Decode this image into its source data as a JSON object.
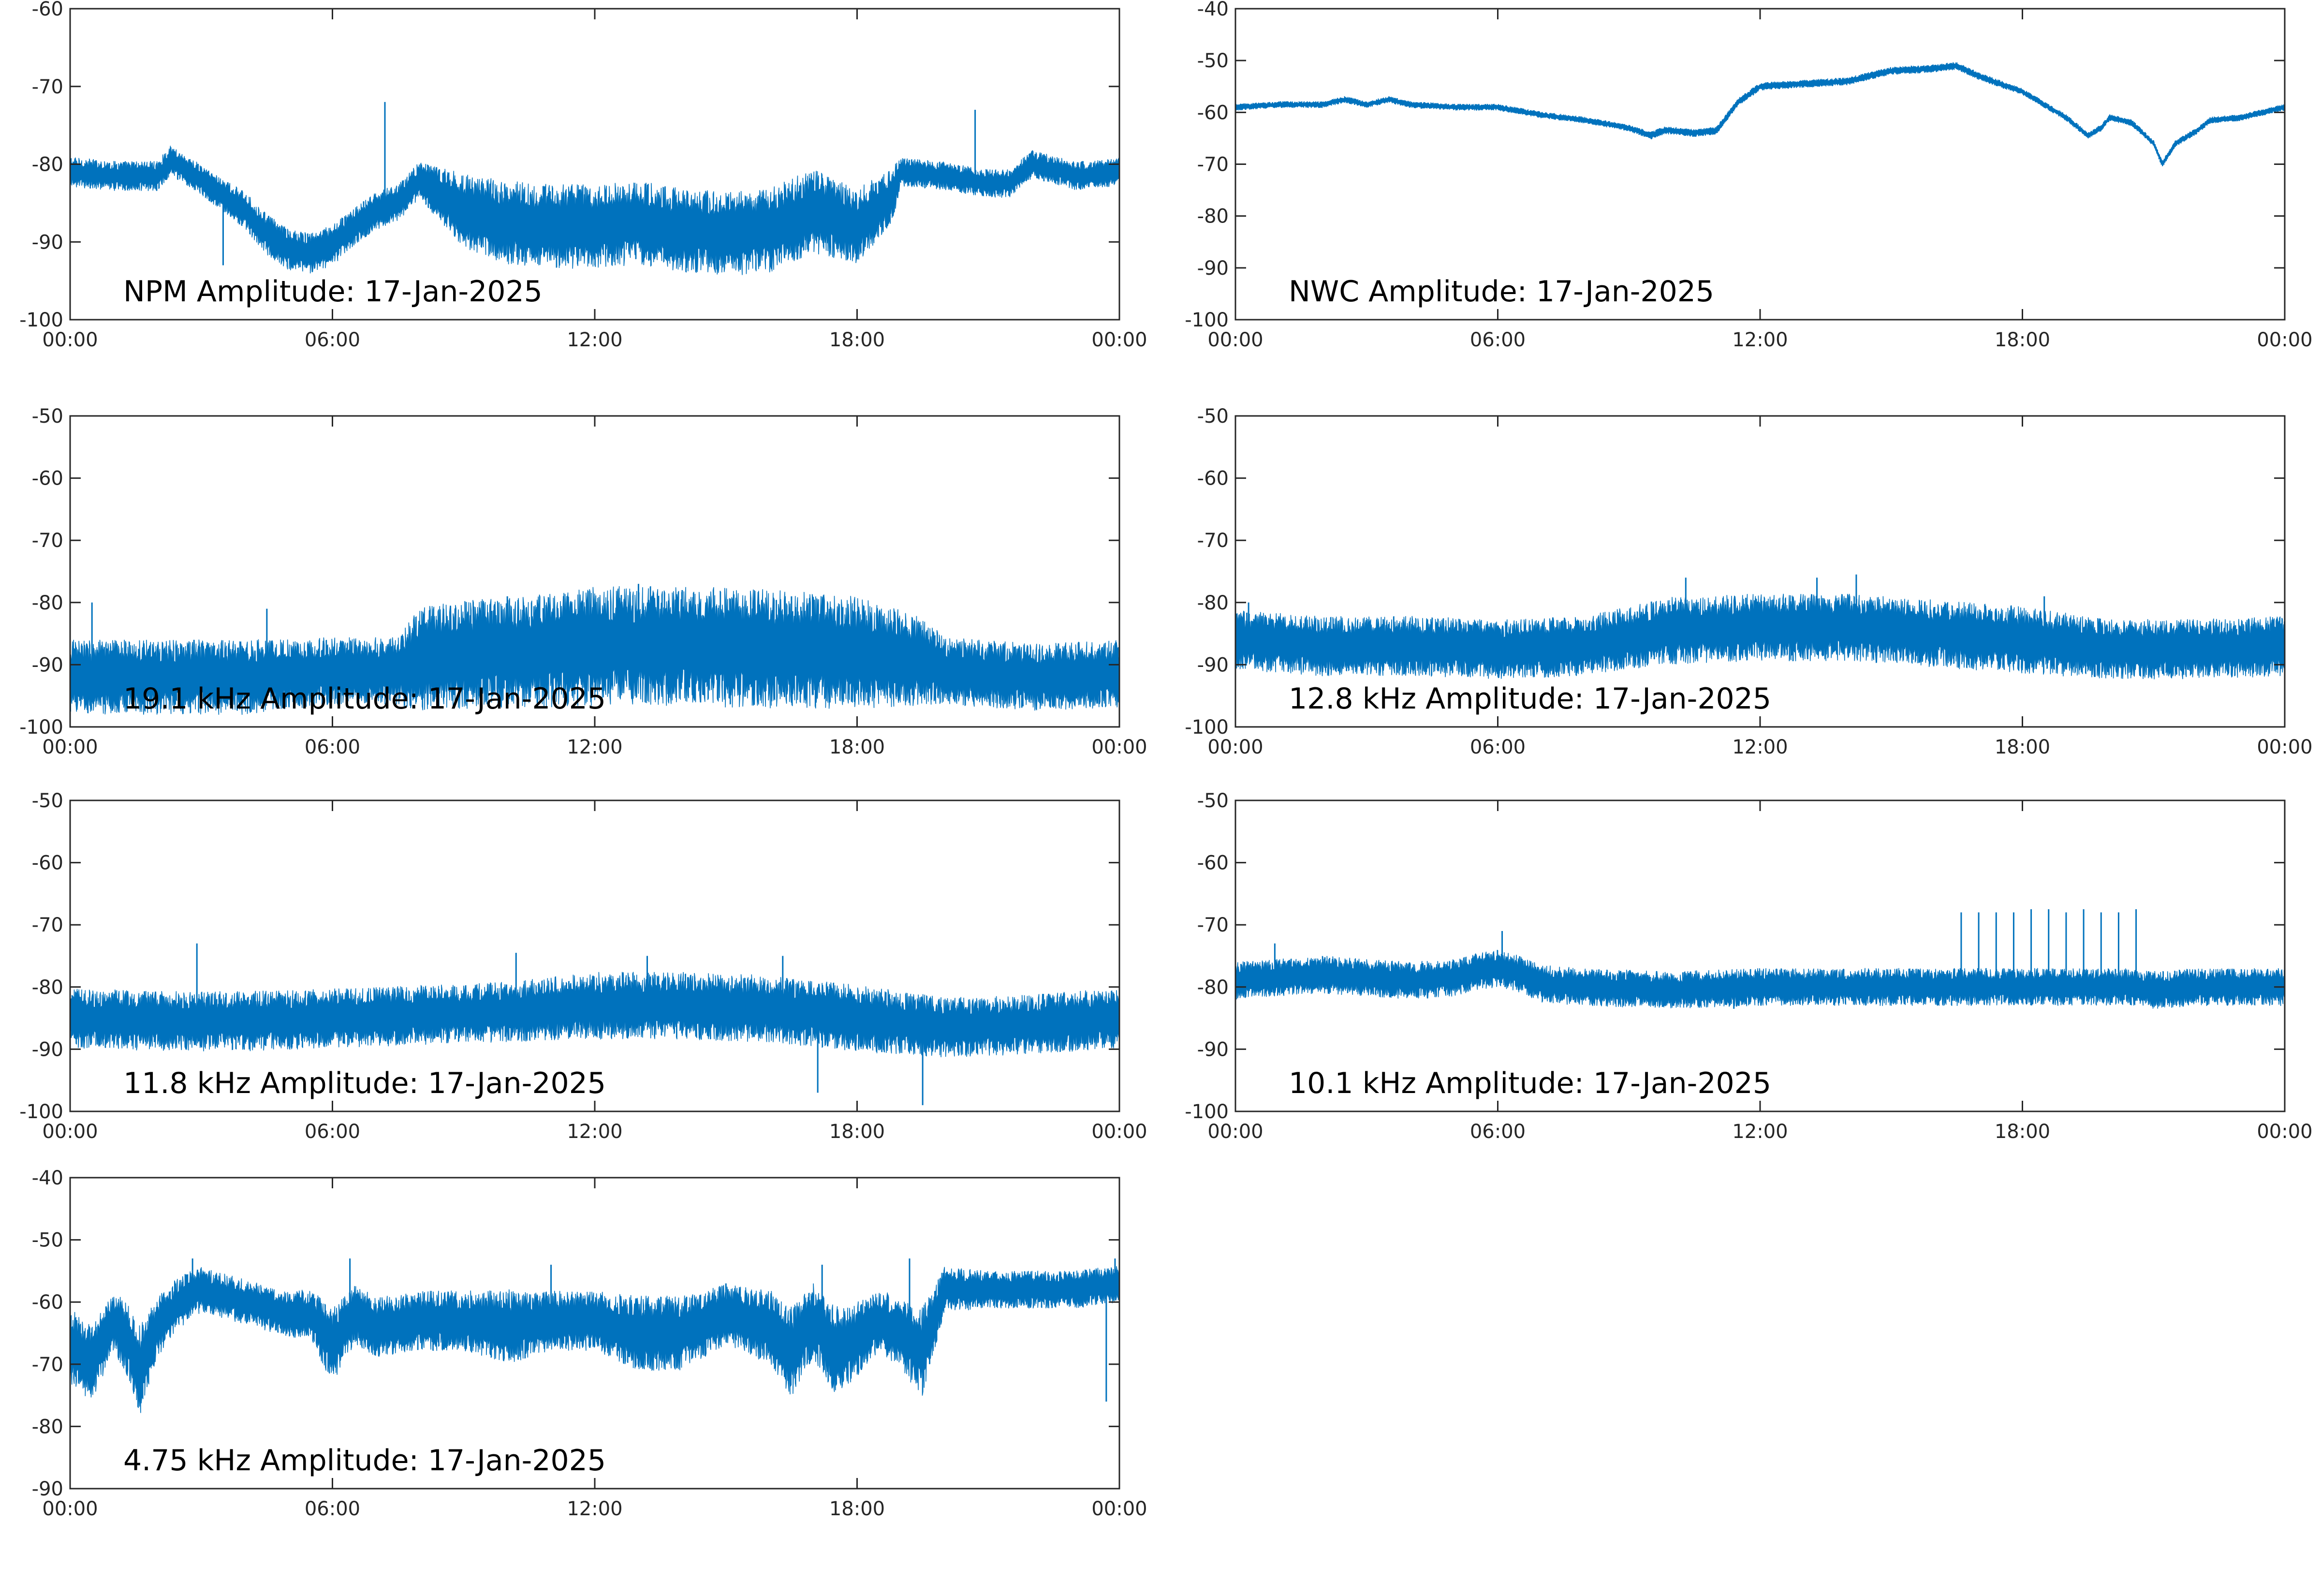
{
  "figure": {
    "background": "#ffffff",
    "line_color": "#0072bd",
    "axis_color": "#262626"
  },
  "chart_data": [
    {
      "type": "line",
      "title": "NPM Amplitude: 17-Jan-2025",
      "xticks": [
        "00:00",
        "06:00",
        "12:00",
        "18:00",
        "00:00"
      ],
      "xlim": [
        0,
        24
      ],
      "ylim": [
        -100,
        -60
      ],
      "yticks": [
        -60,
        -70,
        -80,
        -90,
        -100
      ],
      "grid": false,
      "series": [
        {
          "color": "#0072bd",
          "x": [
            0,
            1,
            2,
            2.3,
            3,
            3.5,
            4,
            4.5,
            5,
            5.5,
            6,
            6.5,
            7,
            7.5,
            8,
            8.5,
            9,
            10,
            11,
            12,
            13,
            14,
            15,
            16,
            17,
            18,
            18.8,
            19,
            20,
            21,
            21.5,
            22,
            23,
            24
          ],
          "y": [
            -81,
            -81.5,
            -81.5,
            -79.5,
            -82,
            -84,
            -86,
            -89,
            -91,
            -91.5,
            -90.5,
            -88,
            -86,
            -85,
            -82,
            -84,
            -86,
            -87.5,
            -88,
            -88,
            -87.5,
            -88.5,
            -89,
            -88.5,
            -86,
            -88,
            -84,
            -81,
            -81.5,
            -82.5,
            -82.5,
            -80,
            -81.5,
            -81
          ],
          "spread": [
            1.6,
            1.6,
            1.6,
            1.6,
            1.6,
            1.8,
            2,
            2.2,
            2.2,
            2.2,
            2.2,
            2,
            2,
            2,
            2,
            3,
            4,
            4.5,
            4.5,
            4.5,
            4.5,
            4.5,
            4.5,
            4.5,
            4.5,
            4,
            3,
            1.5,
            1.5,
            1.5,
            1.5,
            1.5,
            1.5,
            1.5
          ],
          "spikes": [
            [
              3.5,
              -93
            ],
            [
              7.2,
              -72
            ],
            [
              20.7,
              -73
            ],
            [
              22,
              -79
            ]
          ]
        }
      ]
    },
    {
      "type": "line",
      "title": "NWC Amplitude: 17-Jan-2025",
      "xticks": [
        "00:00",
        "06:00",
        "12:00",
        "18:00",
        "00:00"
      ],
      "xlim": [
        0,
        24
      ],
      "ylim": [
        -100,
        -40
      ],
      "yticks": [
        -40,
        -50,
        -60,
        -70,
        -80,
        -90,
        -100
      ],
      "grid": false,
      "series": [
        {
          "color": "#0072bd",
          "x": [
            0,
            1,
            2,
            2.5,
            3,
            3.5,
            4,
            5,
            6,
            7,
            8,
            9,
            9.5,
            9.8,
            10,
            10.5,
            11,
            11.5,
            12,
            13,
            14,
            15,
            16,
            16.5,
            17,
            18,
            19,
            19.5,
            19.8,
            20,
            20.5,
            21,
            21.2,
            21.5,
            22,
            22.3,
            23,
            24
          ],
          "y": [
            -59,
            -58.5,
            -58.5,
            -57.5,
            -58.5,
            -57.5,
            -58.5,
            -59,
            -59,
            -60.5,
            -61.5,
            -63,
            -64.5,
            -63.5,
            -63.5,
            -64,
            -63.5,
            -58,
            -55,
            -54.5,
            -54,
            -52,
            -51.5,
            -51,
            -53,
            -56,
            -61,
            -64.5,
            -63,
            -61,
            -62,
            -66,
            -70,
            -66,
            -63.5,
            -61.5,
            -61,
            -59
          ],
          "spread": [
            0.5,
            0.5,
            0.5,
            0.5,
            0.5,
            0.5,
            0.5,
            0.5,
            0.5,
            0.5,
            0.5,
            0.5,
            0.6,
            0.6,
            0.6,
            0.6,
            0.6,
            0.6,
            0.6,
            0.6,
            0.6,
            0.6,
            0.6,
            0.6,
            0.6,
            0.5,
            0.5,
            0.5,
            0.5,
            0.5,
            0.5,
            0.5,
            0.5,
            0.5,
            0.5,
            0.5,
            0.5,
            0.5
          ],
          "spikes": []
        }
      ]
    },
    {
      "type": "line",
      "title": "19.1 kHz Amplitude: 17-Jan-2025",
      "xticks": [
        "00:00",
        "06:00",
        "12:00",
        "18:00",
        "00:00"
      ],
      "xlim": [
        0,
        24
      ],
      "ylim": [
        -100,
        -50
      ],
      "yticks": [
        -50,
        -60,
        -70,
        -80,
        -90,
        -100
      ],
      "grid": false,
      "series": [
        {
          "color": "#0072bd",
          "x": [
            0,
            2,
            4,
            6,
            7.5,
            8,
            10,
            12,
            14,
            16,
            18,
            19.5,
            20,
            22,
            24
          ],
          "y": [
            -92,
            -92,
            -92,
            -91,
            -91,
            -89,
            -88,
            -87,
            -87,
            -87.5,
            -88,
            -89.5,
            -91,
            -92,
            -91.5
          ],
          "spread": [
            5,
            5,
            5,
            4.5,
            4.5,
            7,
            7.5,
            8,
            8,
            8,
            7.5,
            6,
            4.5,
            4.5,
            4.5
          ],
          "spikes": [
            [
              0.5,
              -80
            ],
            [
              4.5,
              -81
            ],
            [
              10,
              -79
            ],
            [
              13,
              -77
            ],
            [
              14,
              -78
            ],
            [
              16.5,
              -79
            ],
            [
              24,
              -83
            ]
          ]
        }
      ]
    },
    {
      "type": "line",
      "title": "12.8 kHz Amplitude: 17-Jan-2025",
      "xticks": [
        "00:00",
        "06:00",
        "12:00",
        "18:00",
        "00:00"
      ],
      "xlim": [
        0,
        24
      ],
      "ylim": [
        -100,
        -50
      ],
      "yticks": [
        -50,
        -60,
        -70,
        -80,
        -90,
        -100
      ],
      "grid": false,
      "series": [
        {
          "color": "#0072bd",
          "x": [
            0,
            2,
            4,
            6,
            8,
            10,
            12,
            13,
            14,
            16,
            18,
            20,
            22,
            24
          ],
          "y": [
            -86,
            -87,
            -87,
            -87.5,
            -87,
            -84.5,
            -84,
            -84,
            -84,
            -85,
            -86,
            -87.5,
            -87.5,
            -87
          ],
          "spread": [
            4,
            4,
            4,
            4,
            4,
            4.5,
            4.5,
            4.5,
            4.5,
            4.5,
            4.5,
            4,
            4,
            4
          ],
          "spikes": [
            [
              0.3,
              -80
            ],
            [
              10.3,
              -76
            ],
            [
              13.3,
              -76
            ],
            [
              14.2,
              -75.5
            ],
            [
              18.5,
              -79
            ],
            [
              24,
              -81
            ]
          ]
        }
      ]
    },
    {
      "type": "line",
      "title": "11.8 kHz Amplitude: 17-Jan-2025",
      "xticks": [
        "00:00",
        "06:00",
        "12:00",
        "18:00",
        "00:00"
      ],
      "xlim": [
        0,
        24
      ],
      "ylim": [
        -100,
        -50
      ],
      "yticks": [
        -50,
        -60,
        -70,
        -80,
        -90,
        -100
      ],
      "grid": false,
      "series": [
        {
          "color": "#0072bd",
          "x": [
            0,
            2,
            4,
            6,
            8,
            10,
            12,
            14,
            16,
            18,
            20,
            22,
            24
          ],
          "y": [
            -85,
            -85.5,
            -85.5,
            -85,
            -84.5,
            -84,
            -83,
            -83,
            -83.5,
            -85,
            -86.5,
            -86,
            -85
          ],
          "spread": [
            4,
            4,
            4,
            4,
            4,
            4,
            4.5,
            4.5,
            4.5,
            4.5,
            4,
            4,
            4
          ],
          "spikes": [
            [
              2.9,
              -73
            ],
            [
              10.2,
              -74.5
            ],
            [
              13.2,
              -75
            ],
            [
              16.3,
              -75
            ],
            [
              17.1,
              -97
            ],
            [
              19.5,
              -99
            ]
          ]
        }
      ]
    },
    {
      "type": "line",
      "title": "10.1 kHz Amplitude: 17-Jan-2025",
      "xticks": [
        "00:00",
        "06:00",
        "12:00",
        "18:00",
        "00:00"
      ],
      "xlim": [
        0,
        24
      ],
      "ylim": [
        -100,
        -50
      ],
      "yticks": [
        -50,
        -60,
        -70,
        -80,
        -90,
        -100
      ],
      "grid": false,
      "series": [
        {
          "color": "#0072bd",
          "x": [
            0,
            1,
            2,
            3,
            4,
            5,
            5.5,
            6,
            6.5,
            7,
            8,
            10,
            12,
            14,
            16,
            16.5,
            20.5,
            21,
            22,
            24
          ],
          "y": [
            -79,
            -78.5,
            -78,
            -78.5,
            -79,
            -78.5,
            -77.5,
            -77,
            -78,
            -79.5,
            -80,
            -80.5,
            -80,
            -80,
            -80,
            -80,
            -80,
            -80.5,
            -80,
            -80
          ],
          "spread": [
            2.5,
            2.5,
            2.5,
            2.5,
            2.5,
            2.5,
            2.5,
            2.5,
            2.5,
            2.5,
            2.5,
            2.5,
            2.5,
            2.5,
            2.5,
            2.5,
            2.5,
            2.5,
            2.5,
            2.5
          ],
          "spikes": [
            [
              0.9,
              -73
            ],
            [
              6.1,
              -71
            ],
            [
              11.4,
              -83.5
            ],
            [
              16.6,
              -68
            ],
            [
              17,
              -68
            ],
            [
              17.4,
              -68
            ],
            [
              17.8,
              -68
            ],
            [
              18.2,
              -67.5
            ],
            [
              18.6,
              -67.5
            ],
            [
              19,
              -68
            ],
            [
              19.4,
              -67.5
            ],
            [
              19.8,
              -68
            ],
            [
              20.2,
              -68
            ],
            [
              20.6,
              -67.5
            ]
          ]
        }
      ]
    },
    {
      "type": "line",
      "title": "4.75 kHz Amplitude: 17-Jan-2025",
      "xticks": [
        "00:00",
        "06:00",
        "12:00",
        "18:00",
        "00:00"
      ],
      "xlim": [
        0,
        24
      ],
      "ylim": [
        -90,
        -40
      ],
      "yticks": [
        -40,
        -50,
        -60,
        -70,
        -80,
        -90
      ],
      "grid": false,
      "series": [
        {
          "color": "#0072bd",
          "x": [
            0,
            0.5,
            1,
            1.3,
            1.6,
            2,
            2.5,
            3,
            4,
            5,
            5.5,
            6,
            6.5,
            7,
            8,
            9,
            10,
            11,
            12,
            13,
            14,
            15,
            16,
            16.5,
            17,
            17.5,
            18,
            18.5,
            19,
            19.5,
            20,
            21,
            22,
            23,
            24
          ],
          "y": [
            -67,
            -70,
            -63,
            -66,
            -71,
            -64,
            -60,
            -58,
            -60,
            -62,
            -62,
            -67,
            -62,
            -64,
            -63,
            -63,
            -64,
            -63,
            -63,
            -65,
            -65,
            -62,
            -64,
            -68,
            -63,
            -68,
            -66,
            -63,
            -65,
            -68,
            -58,
            -58,
            -58,
            -58,
            -57
          ],
          "spread": [
            5,
            5,
            4,
            5,
            6,
            4,
            3.5,
            3,
            3,
            3,
            3.5,
            5,
            4,
            4,
            4,
            4,
            5,
            4,
            4,
            5,
            5,
            4,
            5,
            6,
            5,
            6,
            5,
            4,
            5,
            6,
            3,
            2.5,
            2.5,
            2.5,
            2.5
          ],
          "spikes": [
            [
              2.8,
              -53
            ],
            [
              6.4,
              -53
            ],
            [
              11,
              -54
            ],
            [
              15,
              -57
            ],
            [
              17.2,
              -54
            ],
            [
              19.2,
              -53
            ],
            [
              23.7,
              -76
            ],
            [
              23.9,
              -53
            ]
          ]
        }
      ]
    }
  ]
}
